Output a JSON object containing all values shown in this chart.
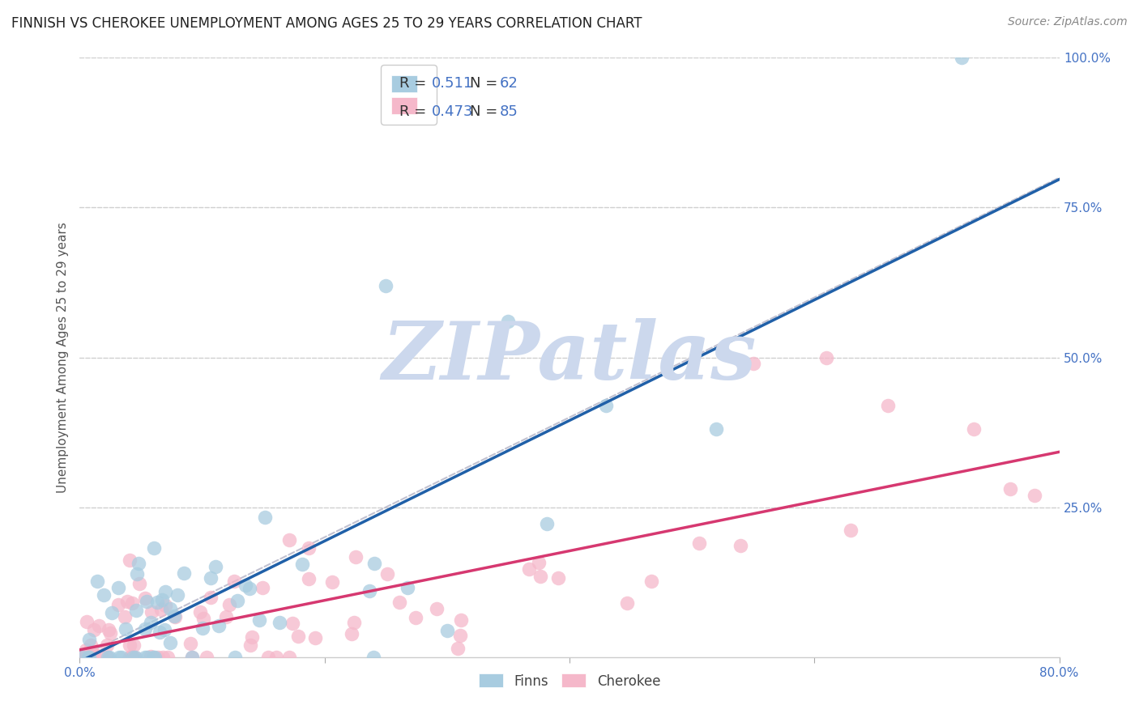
{
  "title": "FINNISH VS CHEROKEE UNEMPLOYMENT AMONG AGES 25 TO 29 YEARS CORRELATION CHART",
  "source": "Source: ZipAtlas.com",
  "ylabel": "Unemployment Among Ages 25 to 29 years",
  "xlim": [
    0.0,
    0.8
  ],
  "ylim": [
    0.0,
    1.0
  ],
  "xtick_vals": [
    0.0,
    0.2,
    0.4,
    0.6,
    0.8
  ],
  "xtick_labels": [
    "0.0%",
    "",
    "",
    "",
    "80.0%"
  ],
  "ytick_vals": [
    0.0,
    0.25,
    0.5,
    0.75,
    1.0
  ],
  "ytick_labels": [
    "",
    "25.0%",
    "50.0%",
    "75.0%",
    "100.0%"
  ],
  "finns_color": "#a8cce0",
  "cherokee_color": "#f5b8ca",
  "finns_line_color": "#2060a8",
  "cherokee_line_color": "#d63870",
  "ref_line_color": "#bbbbcc",
  "legend_text_color": "#4472c4",
  "axis_tick_color": "#4472c4",
  "grid_color": "#d0d0d0",
  "watermark_color": "#ccd8ed",
  "background": "#ffffff",
  "title_color": "#222222",
  "ylabel_color": "#555555",
  "legend_edge_color": "#cccccc",
  "bottom_legend_text_color": "#444444",
  "finns_R": "0.511",
  "finns_N": "62",
  "cherokee_R": "0.473",
  "cherokee_N": "85",
  "watermark_text": "ZIPatlas",
  "legend1_label": "Finns",
  "legend2_label": "Cherokee",
  "title_fontsize": 12,
  "source_fontsize": 10,
  "tick_fontsize": 11,
  "legend_fontsize": 13,
  "ylabel_fontsize": 11,
  "watermark_fontsize": 72
}
